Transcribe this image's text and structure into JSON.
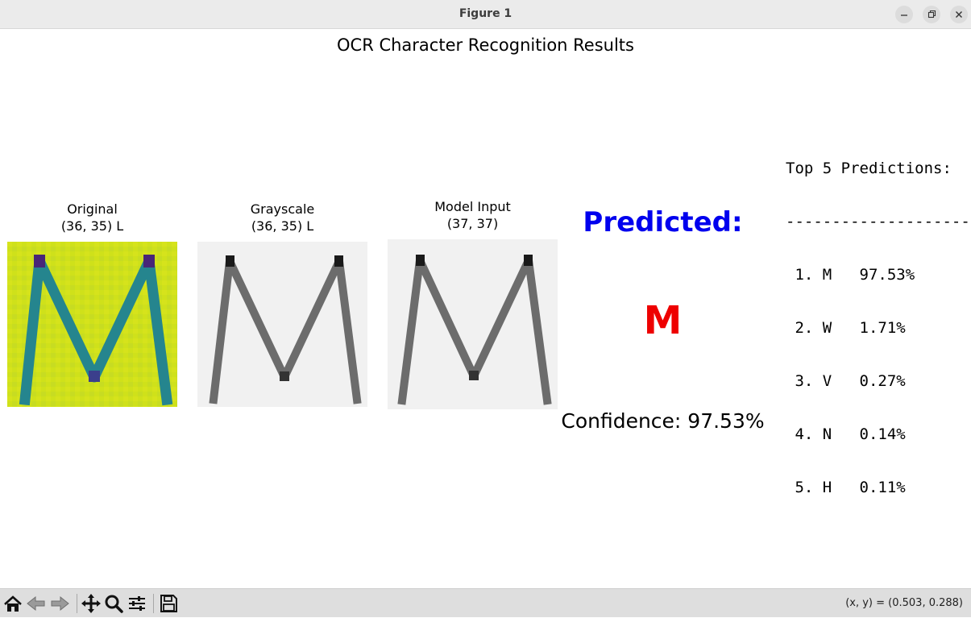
{
  "window": {
    "title": "Figure 1",
    "controls": [
      "minimize-icon",
      "restore-icon",
      "close-icon"
    ]
  },
  "figure": {
    "title": "OCR Character Recognition Results",
    "panels": [
      {
        "title": "Original",
        "subtitle": "(36, 35) L",
        "colormap": "viridis"
      },
      {
        "title": "Grayscale",
        "subtitle": "(36, 35) L",
        "colormap": "gray"
      },
      {
        "title": "Model Input",
        "subtitle": "(37, 37)",
        "colormap": "gray"
      }
    ],
    "prediction": {
      "label": "Predicted:",
      "character": "M",
      "confidence_text": "Confidence: 97.53%",
      "label_color": "#0000ee",
      "character_color": "#ee0000"
    },
    "top5": {
      "header": "Top 5 Predictions:",
      "divider": "--------------------",
      "rows": [
        " 1. M   97.53%",
        " 2. W   1.71%",
        " 3. V   0.27%",
        " 4. N   0.14%",
        " 5. H   0.11%"
      ]
    }
  },
  "toolbar": {
    "buttons": [
      "home-icon",
      "back-icon",
      "forward-icon",
      "pan-icon",
      "zoom-icon",
      "configure-icon",
      "save-icon"
    ],
    "coords": "(x, y) = (0.503, 0.288)"
  }
}
